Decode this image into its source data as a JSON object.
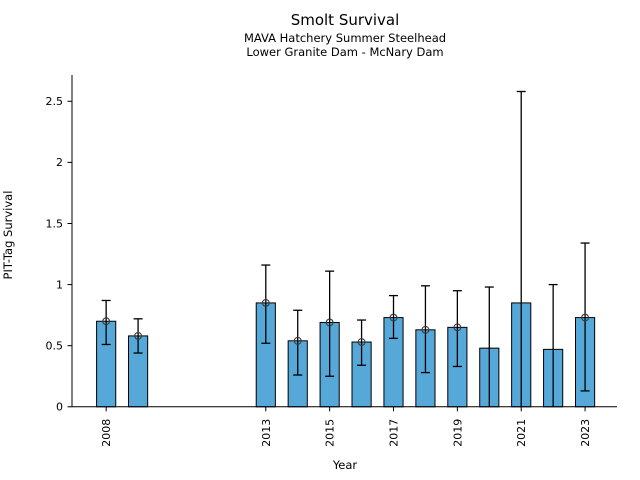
{
  "chart_data": {
    "type": "bar",
    "title": "Smolt Survival",
    "subtitle1": "MAVA Hatchery Summer Steelhead",
    "subtitle2": "Lower Granite Dam - McNary Dam",
    "xlabel": "Year",
    "ylabel": "PIT-Tag Survival",
    "legend": "none",
    "grid": "off",
    "bar_color": "#56a8d8",
    "bar_edge_color": "#000000",
    "errorbar_color": "#000000",
    "marker_style": "open-circle",
    "x_ticks": [
      2008,
      2013,
      2015,
      2017,
      2019,
      2021,
      2023
    ],
    "y_ticks": [
      0,
      0.5,
      1,
      1.5,
      2,
      2.5
    ],
    "xlim": [
      2006.93,
      2024.0
    ],
    "ylim": [
      0,
      2.715
    ],
    "bar_width_years": 0.6,
    "series": [
      {
        "year": 2008,
        "survival": 0.7,
        "ci_low": 0.51,
        "ci_high": 0.87,
        "marker": true
      },
      {
        "year": 2009,
        "survival": 0.58,
        "ci_low": 0.44,
        "ci_high": 0.72,
        "marker": true
      },
      {
        "year": 2013,
        "survival": 0.85,
        "ci_low": 0.52,
        "ci_high": 1.16,
        "marker": true
      },
      {
        "year": 2014,
        "survival": 0.54,
        "ci_low": 0.26,
        "ci_high": 0.79,
        "marker": true
      },
      {
        "year": 2015,
        "survival": 0.69,
        "ci_low": 0.25,
        "ci_high": 1.11,
        "marker": true
      },
      {
        "year": 2016,
        "survival": 0.53,
        "ci_low": 0.34,
        "ci_high": 0.71,
        "marker": true
      },
      {
        "year": 2017,
        "survival": 0.73,
        "ci_low": 0.56,
        "ci_high": 0.91,
        "marker": true
      },
      {
        "year": 2018,
        "survival": 0.63,
        "ci_low": 0.28,
        "ci_high": 0.99,
        "marker": true
      },
      {
        "year": 2019,
        "survival": 0.65,
        "ci_low": 0.33,
        "ci_high": 0.95,
        "marker": true
      },
      {
        "year": 2020,
        "survival": 0.48,
        "ci_low": 0.0,
        "ci_high": 0.98,
        "marker": false
      },
      {
        "year": 2021,
        "survival": 0.85,
        "ci_low": 0.0,
        "ci_high": 2.58,
        "marker": false
      },
      {
        "year": 2022,
        "survival": 0.47,
        "ci_low": 0.0,
        "ci_high": 1.0,
        "marker": false
      },
      {
        "year": 2023,
        "survival": 0.73,
        "ci_low": 0.13,
        "ci_high": 1.34,
        "marker": true
      }
    ]
  }
}
